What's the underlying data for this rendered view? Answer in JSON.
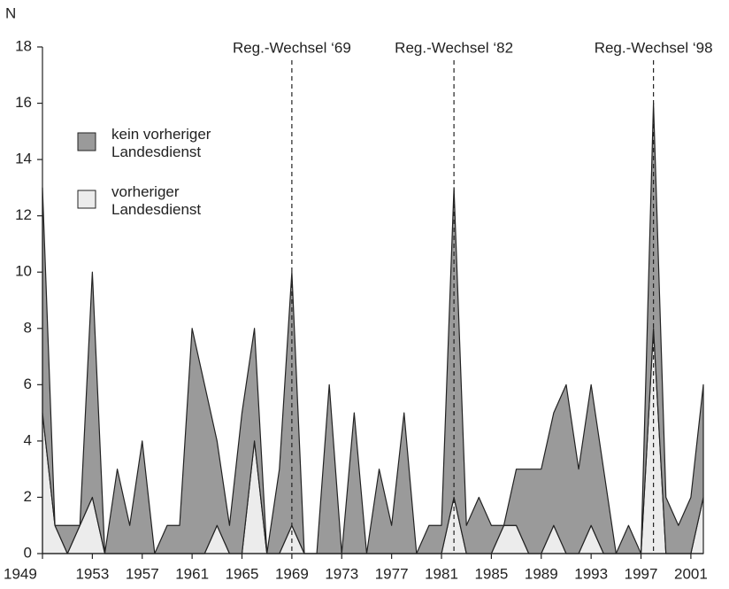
{
  "chart_data": {
    "type": "area",
    "stacked": true,
    "ylabel": "N",
    "x": [
      1949,
      1950,
      1951,
      1952,
      1953,
      1954,
      1955,
      1956,
      1957,
      1958,
      1959,
      1960,
      1961,
      1962,
      1963,
      1964,
      1965,
      1966,
      1967,
      1968,
      1969,
      1970,
      1971,
      1972,
      1973,
      1974,
      1975,
      1976,
      1977,
      1978,
      1979,
      1980,
      1981,
      1982,
      1983,
      1984,
      1985,
      1986,
      1987,
      1988,
      1989,
      1990,
      1991,
      1992,
      1993,
      1994,
      1995,
      1996,
      1997,
      1998,
      1999,
      2000,
      2001,
      2002
    ],
    "series": [
      {
        "name": "vorheriger Landesdienst",
        "color": "#ececec",
        "values": [
          5,
          1,
          0,
          1,
          2,
          0,
          0,
          0,
          0,
          0,
          0,
          0,
          0,
          0,
          1,
          0,
          0,
          4,
          0,
          0,
          1,
          0,
          0,
          0,
          0,
          0,
          0,
          0,
          0,
          0,
          0,
          0,
          0,
          2,
          0,
          0,
          0,
          1,
          1,
          0,
          0,
          1,
          0,
          0,
          1,
          0,
          0,
          0,
          0,
          8,
          0,
          0,
          0,
          2
        ]
      },
      {
        "name": "kein vorheriger Landesdienst",
        "color": "#9a9a9a",
        "values": [
          8,
          0,
          1,
          0,
          8,
          0,
          3,
          1,
          4,
          0,
          1,
          1,
          8,
          6,
          3,
          1,
          5,
          4,
          0,
          3,
          9,
          0,
          0,
          6,
          0,
          5,
          0,
          3,
          1,
          5,
          0,
          1,
          1,
          11,
          1,
          2,
          1,
          0,
          2,
          3,
          3,
          4,
          6,
          3,
          5,
          3,
          0,
          1,
          0,
          8,
          2,
          1,
          2,
          4
        ]
      }
    ],
    "xlim": [
      1949,
      2002
    ],
    "xticks": [
      1949,
      1953,
      1957,
      1961,
      1965,
      1969,
      1973,
      1977,
      1981,
      1985,
      1989,
      1993,
      1997,
      2001
    ],
    "ylim": [
      0,
      18
    ],
    "yticks": [
      0,
      2,
      4,
      6,
      8,
      10,
      12,
      14,
      16,
      18
    ],
    "grid": false,
    "legend": "upper left",
    "annotations": [
      {
        "x": 1969,
        "text": "Reg.-Wechsel ‘69"
      },
      {
        "x": 1982,
        "text": "Reg.-Wechsel ‘82"
      },
      {
        "x": 1998,
        "text": "Reg.-Wechsel ‘98"
      }
    ]
  }
}
